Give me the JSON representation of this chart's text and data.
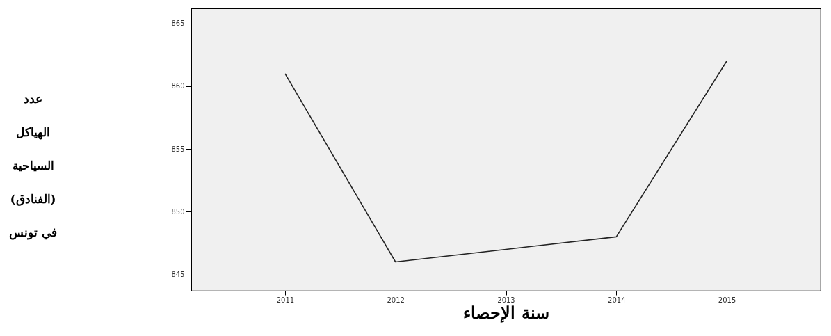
{
  "chart_data": {
    "type": "line",
    "xlabel": "سنة الإحصاء",
    "ylabel": "عدد الهياكل السياحية (الفنادق) في تونس",
    "categories": [
      "2011",
      "2012",
      "2013",
      "2014",
      "2015"
    ],
    "series": [
      {
        "color": "#222222",
        "values": [
          861,
          846,
          847,
          848,
          862
        ]
      }
    ],
    "ylim": [
      843.7,
      866.2
    ],
    "yticks": [
      845,
      850,
      855,
      860,
      865
    ],
    "grid": false,
    "marker": "none",
    "line_style": "solid"
  }
}
